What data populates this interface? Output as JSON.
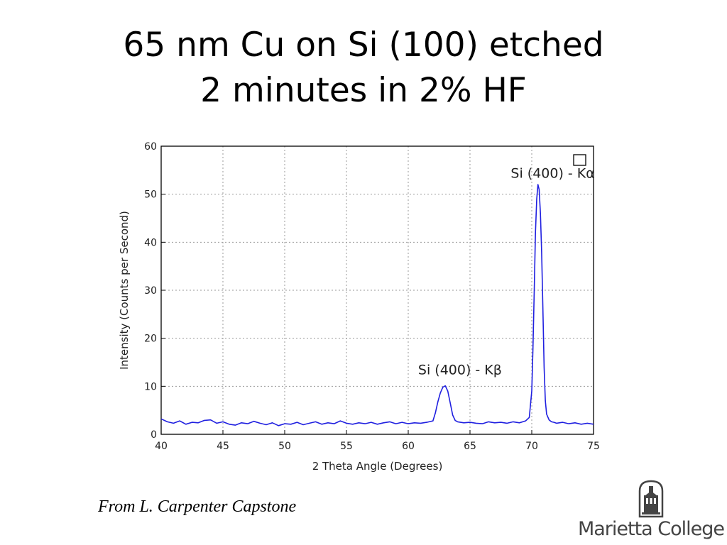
{
  "slide": {
    "title_line1": "65 nm Cu on Si (100) etched",
    "title_line2": "2 minutes in 2% HF",
    "credit": "From L. Carpenter Capstone",
    "logo_text": "Marietta College"
  },
  "chart_data": {
    "type": "line",
    "xlabel": "2 Theta Angle (Degrees)",
    "ylabel": "Intensity (Counts per Second)",
    "xlim": [
      40,
      75
    ],
    "ylim": [
      0,
      60
    ],
    "xticks": [
      40,
      45,
      50,
      55,
      60,
      65,
      70,
      75
    ],
    "yticks": [
      0,
      10,
      20,
      30,
      40,
      50,
      60
    ],
    "grid": true,
    "line_color": "#2020e0",
    "x": [
      40,
      40.5,
      41,
      41.5,
      42,
      42.5,
      43,
      43.5,
      44,
      44.5,
      45,
      45.5,
      46,
      46.5,
      47,
      47.5,
      48,
      48.5,
      49,
      49.5,
      50,
      50.5,
      51,
      51.5,
      52,
      52.5,
      53,
      53.5,
      54,
      54.5,
      55,
      55.5,
      56,
      56.5,
      57,
      57.5,
      58,
      58.5,
      59,
      59.5,
      60,
      60.5,
      61,
      61.5,
      62,
      62.2,
      62.4,
      62.6,
      62.8,
      63,
      63.2,
      63.4,
      63.6,
      63.8,
      64,
      64.5,
      65,
      65.5,
      66,
      66.5,
      67,
      67.5,
      68,
      68.5,
      69,
      69.5,
      69.8,
      70,
      70.1,
      70.2,
      70.3,
      70.4,
      70.5,
      70.6,
      70.7,
      70.8,
      70.9,
      71,
      71.1,
      71.2,
      71.4,
      71.6,
      71.8,
      72,
      72.5,
      73,
      73.5,
      74,
      74.5,
      75
    ],
    "y": [
      3.2,
      2.6,
      2.3,
      2.8,
      2.1,
      2.5,
      2.4,
      2.9,
      3,
      2.3,
      2.6,
      2.1,
      1.9,
      2.4,
      2.2,
      2.7,
      2.3,
      2,
      2.4,
      1.8,
      2.2,
      2.1,
      2.5,
      2,
      2.3,
      2.6,
      2.1,
      2.4,
      2.2,
      2.8,
      2.3,
      2.1,
      2.4,
      2.2,
      2.5,
      2.1,
      2.4,
      2.6,
      2.2,
      2.5,
      2.2,
      2.4,
      2.3,
      2.5,
      2.8,
      4.5,
      6.8,
      8.6,
      9.8,
      10.1,
      9,
      6.5,
      4,
      2.9,
      2.6,
      2.4,
      2.5,
      2.3,
      2.2,
      2.6,
      2.4,
      2.5,
      2.3,
      2.6,
      2.4,
      2.8,
      3.5,
      9,
      18,
      30,
      42,
      49,
      52,
      51,
      46,
      38,
      26,
      14,
      7,
      4.2,
      3,
      2.6,
      2.5,
      2.3,
      2.5,
      2.2,
      2.4,
      2.1,
      2.3,
      2.1
    ],
    "annotations": [
      {
        "text": "Si (400) - Kα",
        "x": 68.3,
        "y": 53.4
      },
      {
        "text": "Si (400) - Kβ",
        "x": 60.8,
        "y": 12.5
      }
    ],
    "legend": "top-right"
  }
}
